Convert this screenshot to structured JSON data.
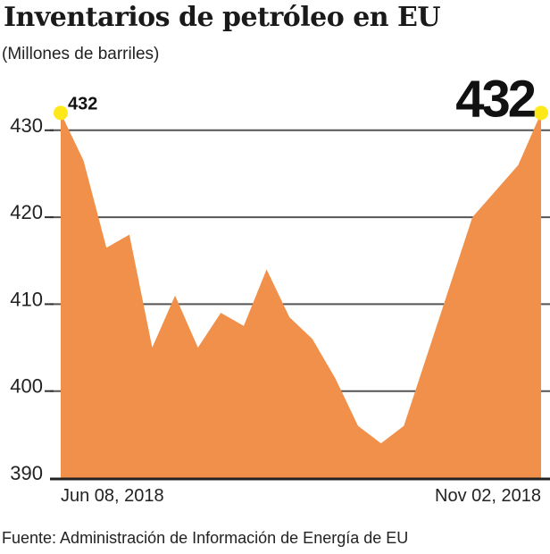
{
  "chart_data": {
    "type": "area",
    "title": "Inventarios de petróleo en EU",
    "subtitle": "(Millones de barriles)",
    "xlabel": "",
    "ylabel": "Millones de barriles",
    "x_tick_labels": [
      "Jun 08, 2018",
      "Nov 02, 2018"
    ],
    "y_ticks": [
      390,
      400,
      410,
      420,
      430
    ],
    "ylim": [
      390,
      434
    ],
    "grid": true,
    "legend": "none",
    "series": [
      {
        "name": "Inventarios de petróleo",
        "color": "#F0904A",
        "x": [
          "Jun 08, 2018",
          "Jun 15, 2018",
          "Jun 22, 2018",
          "Jun 29, 2018",
          "Jul 06, 2018",
          "Jul 13, 2018",
          "Jul 20, 2018",
          "Jul 27, 2018",
          "Aug 03, 2018",
          "Aug 10, 2018",
          "Aug 17, 2018",
          "Aug 24, 2018",
          "Aug 31, 2018",
          "Sep 07, 2018",
          "Sep 14, 2018",
          "Sep 21, 2018",
          "Sep 28, 2018",
          "Oct 05, 2018",
          "Oct 12, 2018",
          "Oct 19, 2018",
          "Oct 26, 2018",
          "Nov 02, 2018"
        ],
        "values": [
          432,
          426.5,
          416.5,
          418,
          405,
          411,
          405,
          409,
          407.5,
          414,
          408.5,
          406,
          401.5,
          396,
          394,
          396,
          404,
          412,
          420,
          423,
          426,
          432
        ]
      }
    ],
    "annotations": [
      {
        "label": "432",
        "point": "first",
        "style": "small"
      },
      {
        "label": "432",
        "point": "last",
        "style": "large"
      }
    ],
    "marker_color": "#FFE81A",
    "source": "Fuente: Administración de Información de Energía de EU"
  }
}
